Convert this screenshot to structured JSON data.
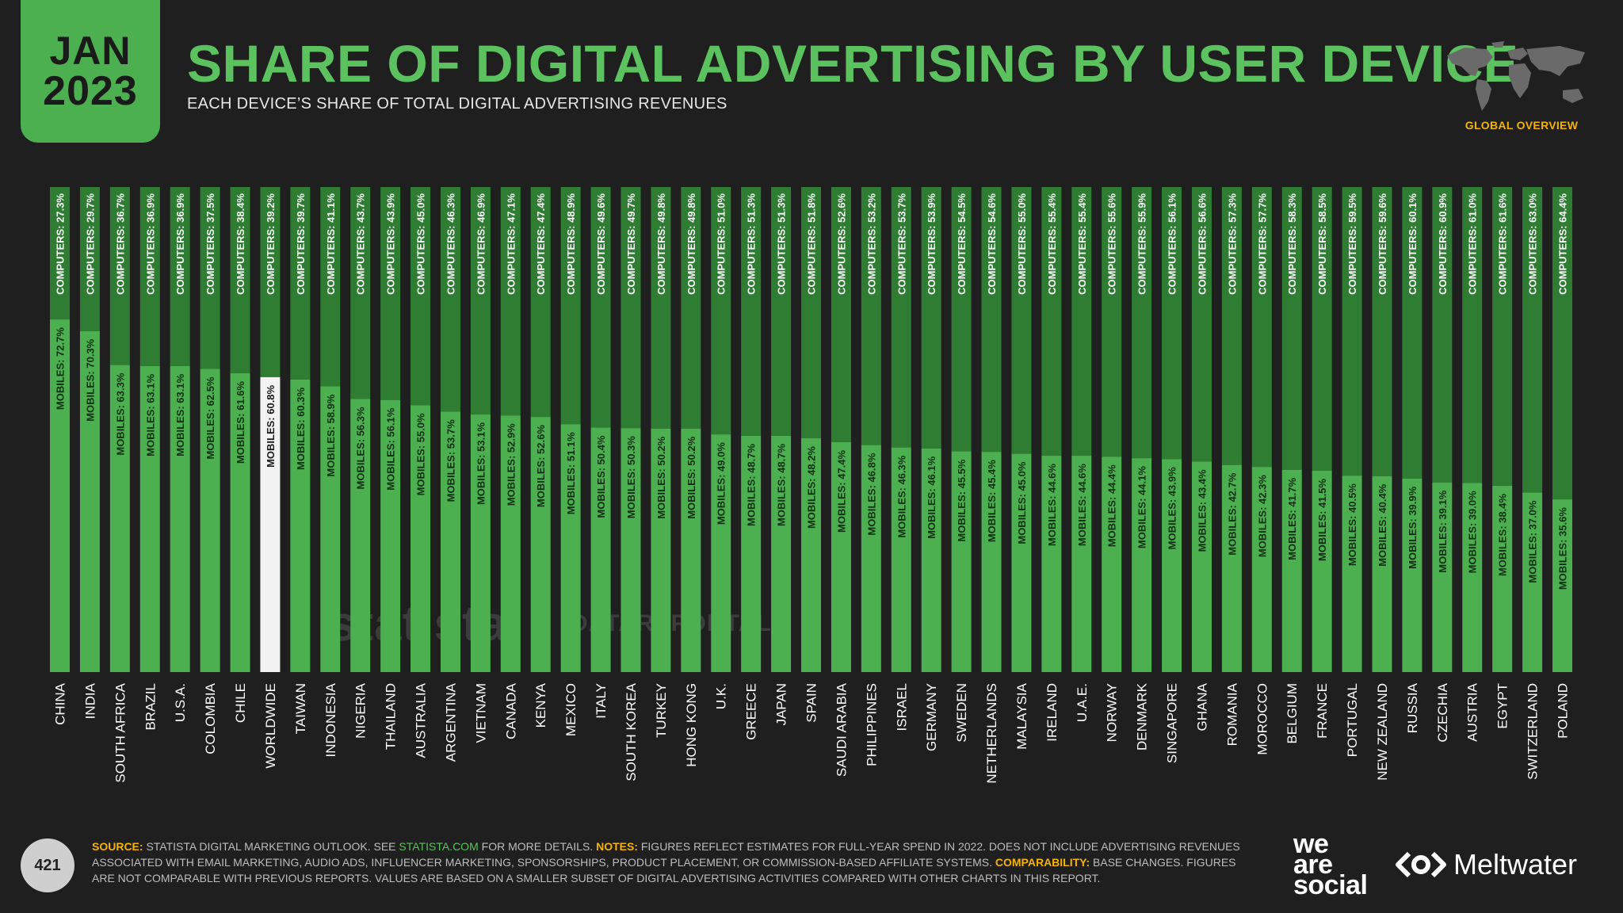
{
  "header": {
    "badge_month": "JAN",
    "badge_year": "2023",
    "title": "SHARE OF DIGITAL ADVERTISING BY USER DEVICE",
    "subtitle": "EACH DEVICE’S SHARE OF TOTAL DIGITAL ADVERTISING REVENUES",
    "region": "GLOBAL OVERVIEW"
  },
  "watermarks": {
    "statista": "statista",
    "datareportal": "DATAREPORTAL"
  },
  "footer": {
    "page_number": "421",
    "source_label": "SOURCE:",
    "source_text_1": "STATISTA DIGITAL MARKETING OUTLOOK. SEE",
    "source_link": "STATISTA.COM",
    "source_text_2": "FOR MORE DETAILS.",
    "notes_label": "NOTES:",
    "notes_text": "FIGURES REFLECT ESTIMATES FOR FULL-YEAR SPEND IN 2022. DOES NOT INCLUDE ADVERTISING REVENUES ASSOCIATED WITH EMAIL MARKETING, AUDIO ADS, INFLUENCER MARKETING, SPONSORSHIPS, PRODUCT PLACEMENT, OR COMMISSION-BASED AFFILIATE SYSTEMS.",
    "comparability_label": "COMPARABILITY:",
    "comparability_text": "BASE CHANGES. FIGURES ARE NOT COMPARABLE WITH PREVIOUS REPORTS. VALUES ARE BASED ON A SMALLER SUBSET OF DIGITAL ADVERTISING ACTIVITIES COMPARED WITH OTHER CHARTS IN THIS REPORT.",
    "logo_we": "we",
    "logo_are": "are",
    "logo_social": "social",
    "logo_meltwater": "Meltwater"
  },
  "colors": {
    "background": "#1f1f1f",
    "mobiles": "#4caf50",
    "computers": "#2e7d32",
    "highlight": "#f2f2f2",
    "title": "#5cc25f",
    "label_accent": "#f4b400"
  },
  "chart_data": {
    "type": "bar",
    "stacked": true,
    "orientation": "vertical",
    "highlight_category": "WORLDWIDE",
    "ylim": [
      0,
      100
    ],
    "categories": [
      "CHINA",
      "INDIA",
      "SOUTH AFRICA",
      "BRAZIL",
      "U.S.A.",
      "COLOMBIA",
      "CHILE",
      "WORLDWIDE",
      "TAIWAN",
      "INDONESIA",
      "NIGERIA",
      "THAILAND",
      "AUSTRALIA",
      "ARGENTINA",
      "VIETNAM",
      "CANADA",
      "KENYA",
      "MEXICO",
      "ITALY",
      "SOUTH KOREA",
      "TURKEY",
      "HONG KONG",
      "U.K.",
      "GREECE",
      "JAPAN",
      "SPAIN",
      "SAUDI ARABIA",
      "PHILIPPINES",
      "ISRAEL",
      "GERMANY",
      "SWEDEN",
      "NETHERLANDS",
      "MALAYSIA",
      "IRELAND",
      "U.A.E.",
      "NORWAY",
      "DENMARK",
      "SINGAPORE",
      "GHANA",
      "ROMANIA",
      "MOROCCO",
      "BELGIUM",
      "FRANCE",
      "PORTUGAL",
      "NEW ZEALAND",
      "RUSSIA",
      "CZECHIA",
      "AUSTRIA",
      "EGYPT",
      "SWITZERLAND",
      "POLAND"
    ],
    "series": [
      {
        "name": "MOBILES",
        "label_prefix": "MOBILES: ",
        "values": [
          72.7,
          70.3,
          63.3,
          63.1,
          63.1,
          62.5,
          61.6,
          60.8,
          60.3,
          58.9,
          56.3,
          56.1,
          55.0,
          53.7,
          53.1,
          52.9,
          52.6,
          51.1,
          50.4,
          50.3,
          50.2,
          50.2,
          49.0,
          48.7,
          48.7,
          48.2,
          47.4,
          46.8,
          46.3,
          46.1,
          45.5,
          45.4,
          45.0,
          44.6,
          44.6,
          44.4,
          44.1,
          43.9,
          43.4,
          42.7,
          42.3,
          41.7,
          41.5,
          40.5,
          40.4,
          39.9,
          39.1,
          39.0,
          38.4,
          37.0,
          35.6
        ]
      },
      {
        "name": "COMPUTERS",
        "label_prefix": "COMPUTERS: ",
        "values": [
          27.3,
          29.7,
          36.7,
          36.9,
          36.9,
          37.5,
          38.4,
          39.2,
          39.7,
          41.1,
          43.7,
          43.9,
          45.0,
          46.3,
          46.9,
          47.1,
          47.4,
          48.9,
          49.6,
          49.7,
          49.8,
          49.8,
          51.0,
          51.3,
          51.3,
          51.8,
          52.6,
          53.2,
          53.7,
          53.9,
          54.5,
          54.6,
          55.0,
          55.4,
          55.4,
          55.6,
          55.9,
          56.1,
          56.6,
          57.3,
          57.7,
          58.3,
          58.5,
          59.5,
          59.6,
          60.1,
          60.9,
          61.0,
          61.6,
          63.0,
          64.4
        ]
      }
    ]
  }
}
